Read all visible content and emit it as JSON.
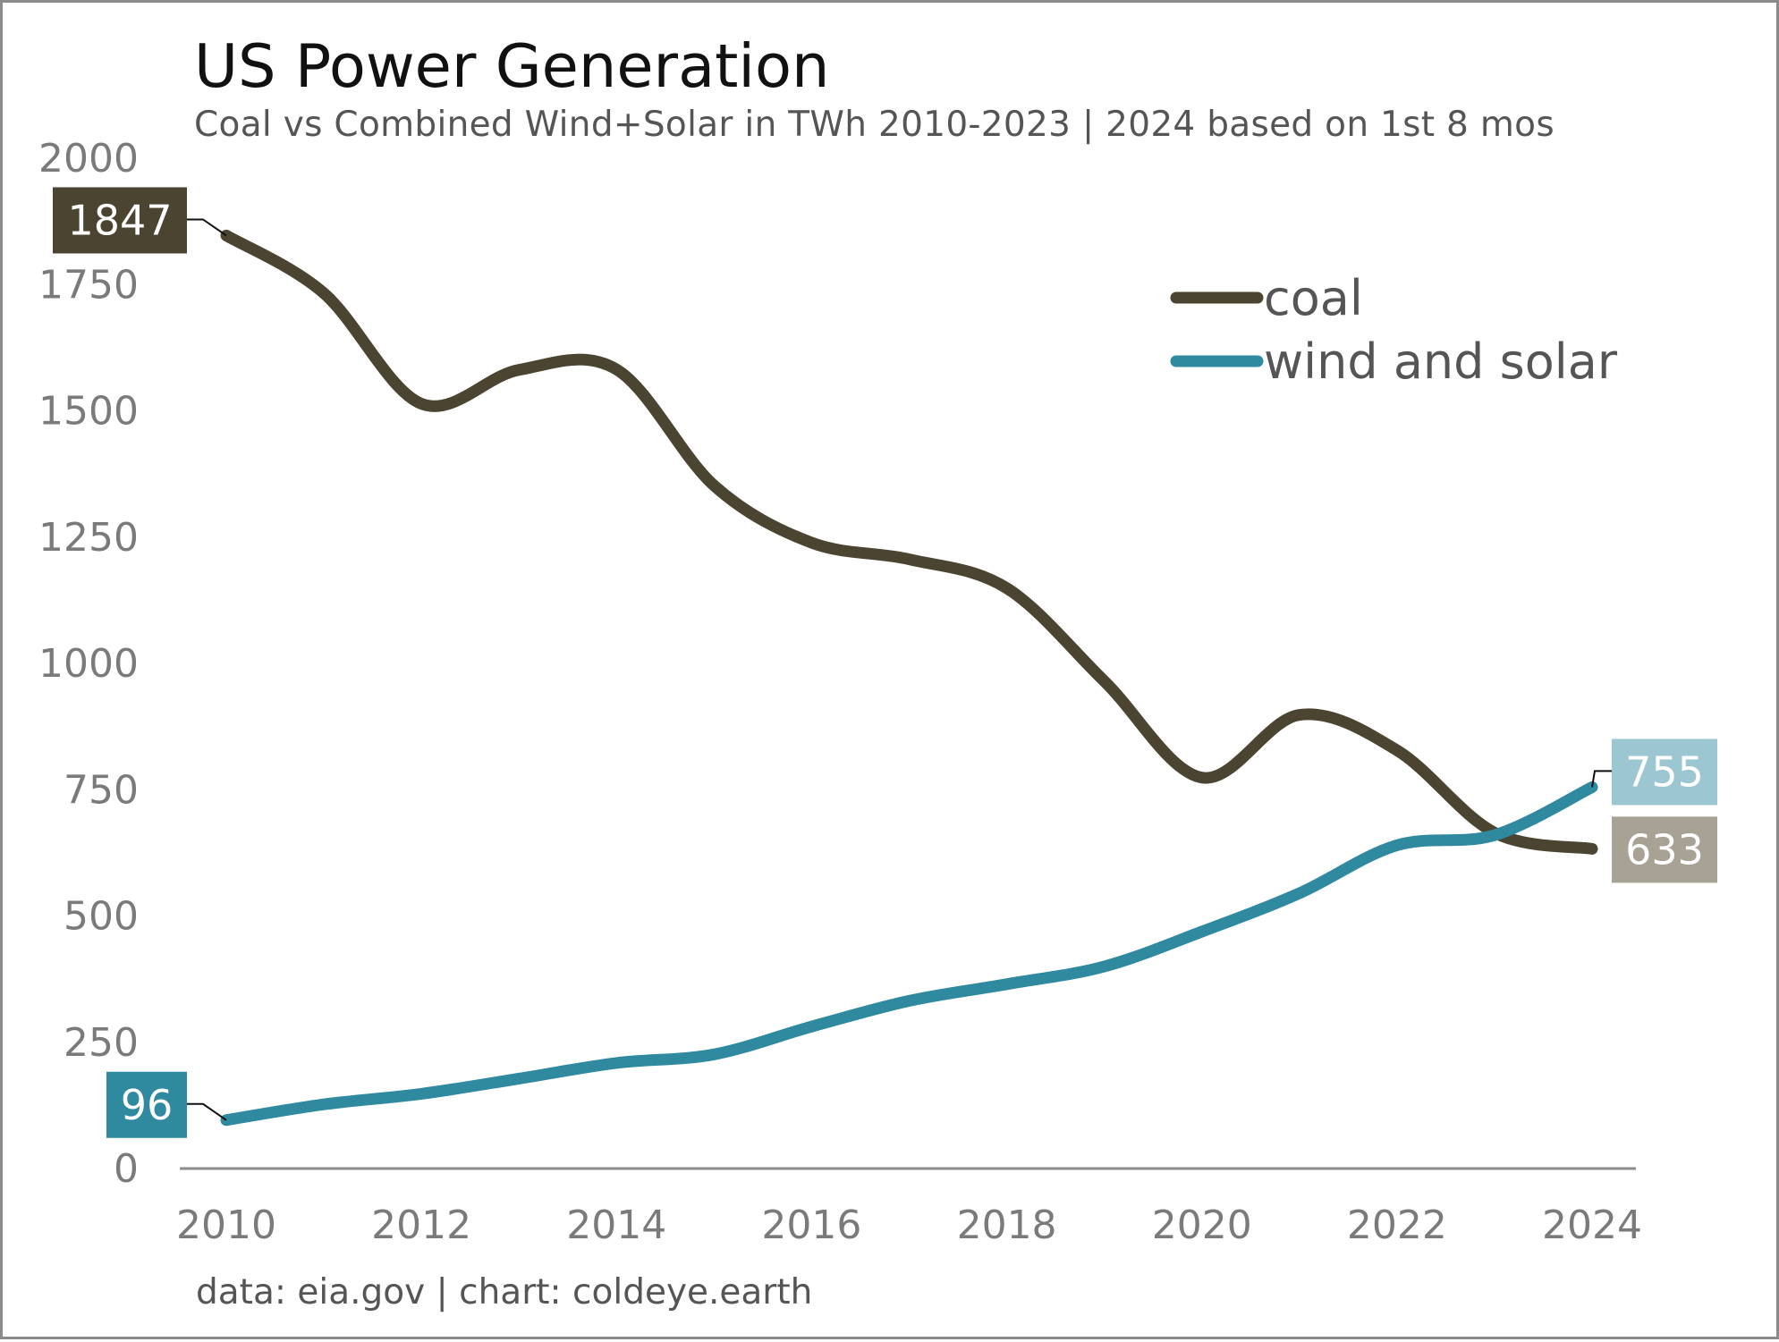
{
  "title": "US Power Generation",
  "subtitle": "Coal vs Combined Wind+Solar in TWh 2010-2023 | 2024 based on 1st 8 mos",
  "footer": "data: eia.gov | chart: coldeye.earth",
  "chart_data": {
    "type": "line",
    "x": [
      2010,
      2011,
      2012,
      2013,
      2014,
      2015,
      2016,
      2017,
      2018,
      2019,
      2020,
      2021,
      2022,
      2023,
      2024
    ],
    "series": [
      {
        "name": "coal",
        "color": "#4b4430",
        "values": [
          1847,
          1733,
          1514,
          1581,
          1582,
          1352,
          1239,
          1206,
          1149,
          965,
          774,
          898,
          828,
          665,
          633
        ],
        "start_label": "1847",
        "start_label_color": "#4b4430",
        "end_label": "633",
        "end_label_color": "#a8a295"
      },
      {
        "name": "wind and solar",
        "color": "#2f8aa0",
        "values": [
          96,
          127,
          148,
          178,
          209,
          226,
          281,
          332,
          365,
          400,
          469,
          545,
          640,
          660,
          755
        ],
        "start_label": "96",
        "start_label_color": "#2f8aa0",
        "end_label": "755",
        "end_label_color": "#9cc7d2"
      }
    ],
    "xlim": [
      2010,
      2024
    ],
    "ylim": [
      0,
      2000
    ],
    "xticks": [
      2010,
      2012,
      2014,
      2016,
      2018,
      2020,
      2022,
      2024
    ],
    "yticks": [
      0,
      250,
      500,
      750,
      1000,
      1250,
      1500,
      1750,
      2000
    ],
    "grid": false,
    "legend_position": "top-right"
  }
}
